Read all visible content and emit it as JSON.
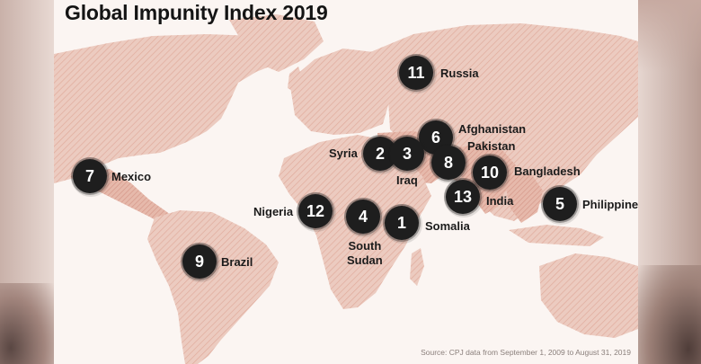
{
  "title": "Global Impunity Index 2019",
  "source": "Source: CPJ data from September 1, 2009 to August 31, 2019",
  "colors": {
    "land": "#eccbc0",
    "land_dark": "#e2b3a5",
    "badge": "#1e1e1e",
    "background": "#fbf5f2"
  },
  "countries": [
    {
      "rank": "1",
      "name": "Somalia"
    },
    {
      "rank": "2",
      "name": "Syria"
    },
    {
      "rank": "3",
      "name": "Iraq"
    },
    {
      "rank": "4",
      "name": "South Sudan",
      "line1": "South",
      "line2": "Sudan"
    },
    {
      "rank": "5",
      "name": "Philippines"
    },
    {
      "rank": "6",
      "name": "Afghanistan"
    },
    {
      "rank": "7",
      "name": "Mexico"
    },
    {
      "rank": "8",
      "name": "Pakistan"
    },
    {
      "rank": "9",
      "name": "Brazil"
    },
    {
      "rank": "10",
      "name": "Bangladesh"
    },
    {
      "rank": "11",
      "name": "Russia"
    },
    {
      "rank": "12",
      "name": "Nigeria"
    },
    {
      "rank": "13",
      "name": "India"
    }
  ]
}
